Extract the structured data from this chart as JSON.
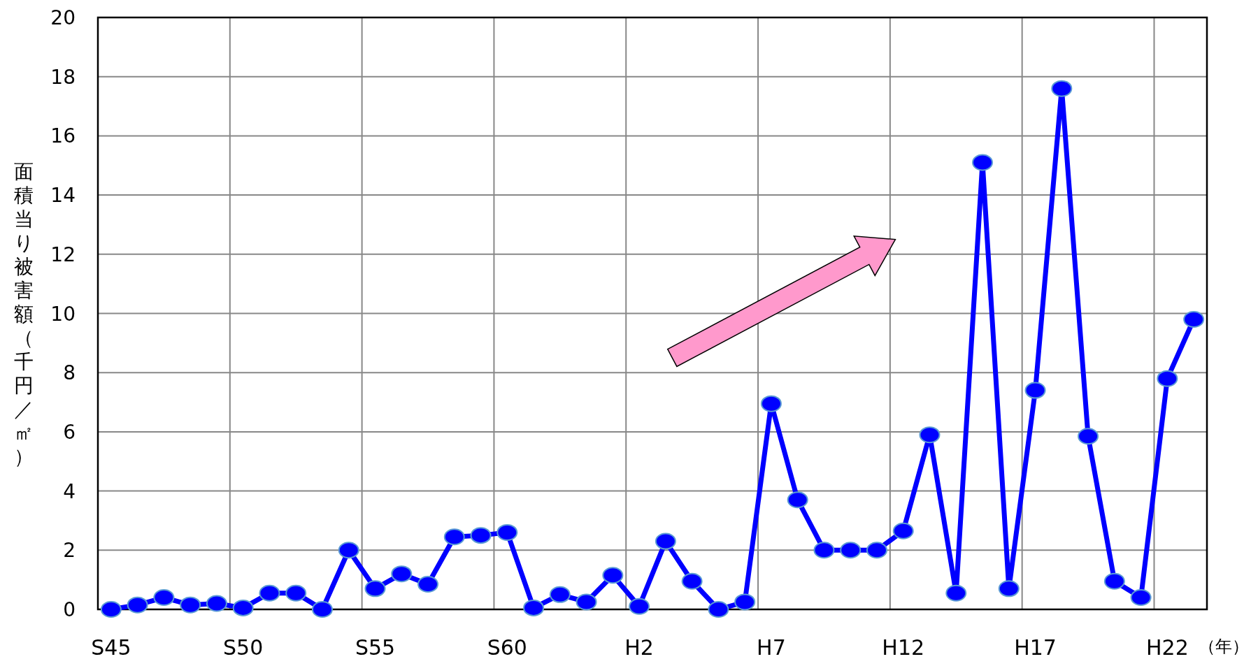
{
  "chart_data": {
    "type": "line",
    "ylabel": "面積当り被害額（千円／㎡）",
    "xlabel": "（年）",
    "categories": [
      "S45",
      null,
      null,
      null,
      null,
      "S50",
      null,
      null,
      null,
      null,
      "S55",
      null,
      null,
      null,
      null,
      "S60",
      null,
      null,
      null,
      null,
      "H2",
      null,
      null,
      null,
      null,
      "H7",
      null,
      null,
      null,
      null,
      "H12",
      null,
      null,
      null,
      null,
      "H17",
      null,
      null,
      null,
      null,
      "H22",
      null
    ],
    "series": [
      {
        "color": "#0000ff",
        "values": [
          0.0,
          0.15,
          0.4,
          0.15,
          0.2,
          0.05,
          0.55,
          0.55,
          0.0,
          2.0,
          0.7,
          1.2,
          0.85,
          2.45,
          2.5,
          2.6,
          0.05,
          0.5,
          0.25,
          1.15,
          0.1,
          2.3,
          0.95,
          0.0,
          0.25,
          6.95,
          3.7,
          2.0,
          2.0,
          2.0,
          2.65,
          5.9,
          0.55,
          15.1,
          0.7,
          7.4,
          17.6,
          5.85,
          0.95,
          0.4,
          7.8,
          9.8
        ]
      }
    ],
    "ylim": [
      0,
      20
    ],
    "yticks": [
      0,
      2,
      4,
      6,
      8,
      10,
      12,
      14,
      16,
      18,
      20
    ],
    "grid": true,
    "marker": "circle",
    "line_style": "solid"
  }
}
